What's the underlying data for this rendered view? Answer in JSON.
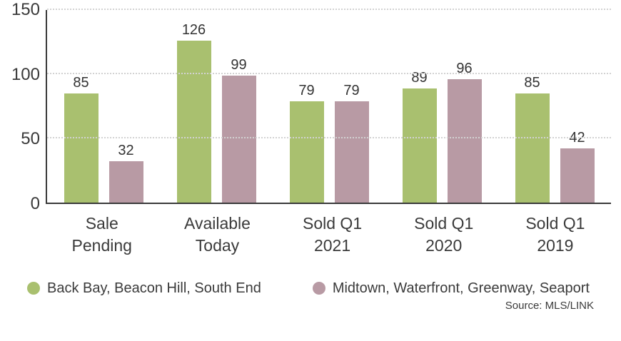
{
  "chart_data": {
    "type": "bar",
    "title": "",
    "xlabel": "",
    "ylabel": "",
    "ylim": [
      0,
      150
    ],
    "yticks": [
      0,
      50,
      100,
      150
    ],
    "grid": "horizontal-dotted",
    "legend_position": "bottom",
    "categories": [
      "Sale\nPending",
      "Available\nToday",
      "Sold Q1\n2021",
      "Sold Q1\n2020",
      "Sold Q1\n2019"
    ],
    "series": [
      {
        "name": "Back Bay, Beacon Hill, South End",
        "color": "#a9c06f",
        "values": [
          85,
          126,
          79,
          89,
          85
        ]
      },
      {
        "name": "Midtown, Waterfront, Greenway, Seaport",
        "color": "#b89aa4",
        "values": [
          32,
          99,
          79,
          96,
          42
        ]
      }
    ],
    "source_note": "Source: MLS/LINK"
  }
}
